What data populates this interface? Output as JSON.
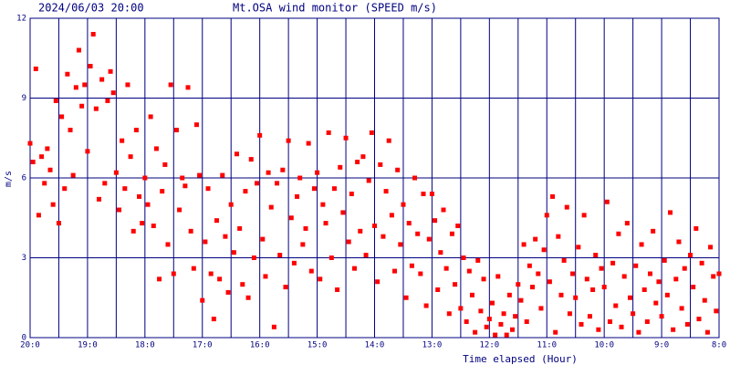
{
  "chart_data": {
    "type": "scatter",
    "title": "Mt.OSA wind monitor (SPEED m/s)",
    "subtitle": "2024/06/03 20:00",
    "x_label": "Time elapsed (Hour)",
    "y_label": "m/s",
    "xlim": [
      20,
      8
    ],
    "ylim": [
      0,
      12
    ],
    "xticks": [
      {
        "value": 20,
        "label": "20:0"
      },
      {
        "value": 19,
        "label": "19:0"
      },
      {
        "value": 18,
        "label": "18:0"
      },
      {
        "value": 17,
        "label": "17:0"
      },
      {
        "value": 16,
        "label": "16:0"
      },
      {
        "value": 15,
        "label": "15:0"
      },
      {
        "value": 14,
        "label": "14:0"
      },
      {
        "value": 13,
        "label": "13:0"
      },
      {
        "value": 12,
        "label": "12:0"
      },
      {
        "value": 11,
        "label": "11:0"
      },
      {
        "value": 10,
        "label": "10:0"
      },
      {
        "value": 9,
        "label": "9:0"
      },
      {
        "value": 8,
        "label": "8:0"
      }
    ],
    "x_minor_ticks": [
      19.5,
      18.5,
      17.5,
      16.5,
      15.5,
      14.5,
      13.5,
      12.5,
      11.5,
      10.5,
      9.5,
      8.5
    ],
    "yticks": [
      0,
      3,
      6,
      9,
      12
    ],
    "grid": true,
    "color": "#ff0000",
    "x": [
      20,
      19.95,
      19.9,
      19.85,
      19.8,
      19.75,
      19.7,
      19.65,
      19.6,
      19.55,
      19.5,
      19.45,
      19.4,
      19.35,
      19.3,
      19.25,
      19.2,
      19.15,
      19.1,
      19.05,
      19,
      18.95,
      18.9,
      18.85,
      18.8,
      18.75,
      18.7,
      18.65,
      18.6,
      18.55,
      18.5,
      18.45,
      18.4,
      18.35,
      18.3,
      18.25,
      18.2,
      18.15,
      18.1,
      18.05,
      18,
      17.95,
      17.9,
      17.85,
      17.8,
      17.75,
      17.7,
      17.65,
      17.6,
      17.55,
      17.5,
      17.45,
      17.4,
      17.35,
      17.3,
      17.25,
      17.2,
      17.15,
      17.1,
      17.05,
      17,
      16.95,
      16.9,
      16.85,
      16.8,
      16.75,
      16.7,
      16.65,
      16.6,
      16.55,
      16.5,
      16.45,
      16.4,
      16.35,
      16.3,
      16.25,
      16.2,
      16.15,
      16.1,
      16.05,
      16,
      15.95,
      15.9,
      15.85,
      15.8,
      15.75,
      15.7,
      15.65,
      15.6,
      15.55,
      15.5,
      15.45,
      15.4,
      15.35,
      15.3,
      15.25,
      15.2,
      15.15,
      15.1,
      15.05,
      15,
      14.95,
      14.9,
      14.85,
      14.8,
      14.75,
      14.7,
      14.65,
      14.6,
      14.55,
      14.5,
      14.45,
      14.4,
      14.35,
      14.3,
      14.25,
      14.2,
      14.15,
      14.1,
      14.05,
      14,
      13.95,
      13.9,
      13.85,
      13.8,
      13.75,
      13.7,
      13.65,
      13.6,
      13.55,
      13.5,
      13.45,
      13.4,
      13.35,
      13.3,
      13.25,
      13.2,
      13.15,
      13.1,
      13.05,
      13,
      12.95,
      12.9,
      12.85,
      12.8,
      12.75,
      12.7,
      12.65,
      12.6,
      12.55,
      12.5,
      12.45,
      12.4,
      12.35,
      12.3,
      12.25,
      12.2,
      12.15,
      12.1,
      12.05,
      12,
      11.95,
      11.9,
      11.85,
      11.8,
      11.75,
      11.7,
      11.65,
      11.6,
      11.55,
      11.5,
      11.45,
      11.4,
      11.35,
      11.3,
      11.25,
      11.2,
      11.15,
      11.1,
      11.05,
      11,
      10.95,
      10.9,
      10.85,
      10.8,
      10.75,
      10.7,
      10.65,
      10.6,
      10.55,
      10.5,
      10.45,
      10.4,
      10.35,
      10.3,
      10.25,
      10.2,
      10.15,
      10.1,
      10.05,
      10,
      9.95,
      9.9,
      9.85,
      9.8,
      9.75,
      9.7,
      9.65,
      9.6,
      9.55,
      9.5,
      9.45,
      9.4,
      9.35,
      9.3,
      9.25,
      9.2,
      9.15,
      9.1,
      9.05,
      9,
      8.95,
      8.9,
      8.85,
      8.8,
      8.75,
      8.7,
      8.65,
      8.6,
      8.55,
      8.5,
      8.45,
      8.4,
      8.35,
      8.3,
      8.25,
      8.2,
      8.15,
      8.1,
      8.05,
      8
    ],
    "values": [
      7.3,
      6.6,
      10.1,
      4.6,
      6.8,
      5.8,
      7.1,
      6.3,
      5.0,
      8.9,
      4.3,
      8.3,
      5.6,
      9.9,
      7.8,
      6.1,
      9.4,
      10.8,
      8.7,
      9.5,
      7.0,
      10.2,
      11.4,
      8.6,
      5.2,
      9.7,
      5.8,
      8.9,
      10.0,
      9.2,
      6.2,
      4.8,
      7.4,
      5.6,
      9.5,
      6.8,
      4.0,
      7.8,
      5.3,
      4.3,
      6.0,
      5.0,
      8.3,
      4.2,
      7.1,
      2.2,
      5.5,
      6.5,
      3.5,
      9.5,
      2.4,
      7.8,
      4.8,
      6.0,
      5.7,
      9.4,
      4.0,
      2.6,
      8.0,
      6.1,
      1.4,
      3.6,
      5.6,
      2.4,
      0.7,
      4.4,
      2.2,
      6.1,
      3.8,
      1.7,
      5.0,
      3.2,
      6.9,
      4.1,
      2.0,
      5.5,
      1.5,
      6.7,
      3.0,
      5.8,
      7.6,
      3.7,
      2.3,
      6.2,
      4.9,
      0.4,
      5.8,
      3.1,
      6.3,
      1.9,
      7.4,
      4.5,
      2.8,
      5.3,
      6.0,
      3.5,
      4.1,
      7.3,
      2.5,
      5.6,
      6.2,
      2.2,
      5.0,
      4.3,
      7.7,
      3.0,
      5.6,
      1.8,
      6.4,
      4.7,
      7.5,
      3.6,
      5.4,
      2.6,
      6.6,
      4.0,
      6.8,
      3.1,
      5.9,
      7.7,
      4.2,
      2.1,
      6.5,
      3.8,
      5.5,
      7.4,
      4.6,
      2.5,
      6.3,
      3.5,
      5.0,
      1.5,
      4.3,
      2.7,
      6.0,
      3.9,
      2.4,
      5.4,
      1.2,
      3.7,
      5.4,
      4.4,
      1.8,
      3.2,
      4.8,
      2.6,
      0.9,
      3.9,
      2.0,
      4.2,
      1.1,
      3.0,
      0.6,
      2.5,
      1.6,
      0.2,
      2.9,
      1.0,
      2.2,
      0.4,
      0.7,
      1.3,
      0.1,
      2.3,
      0.5,
      0.9,
      0.1,
      1.6,
      0.3,
      0.8,
      2.0,
      1.4,
      3.5,
      0.6,
      2.7,
      1.9,
      3.7,
      2.4,
      1.1,
      3.3,
      4.6,
      2.1,
      5.3,
      0.2,
      3.8,
      1.6,
      2.9,
      4.9,
      0.9,
      2.4,
      1.5,
      3.4,
      0.5,
      4.6,
      2.2,
      0.8,
      1.8,
      3.1,
      0.3,
      2.6,
      1.9,
      5.1,
      0.6,
      2.8,
      1.2,
      3.9,
      0.4,
      2.3,
      4.3,
      1.5,
      0.9,
      2.7,
      0.2,
      3.5,
      1.8,
      0.6,
      2.4,
      4.0,
      1.3,
      2.1,
      0.8,
      2.9,
      1.6,
      4.7,
      0.3,
      2.2,
      3.6,
      1.1,
      2.6,
      0.5,
      3.1,
      1.9,
      4.1,
      0.7,
      2.8,
      1.4,
      0.2,
      3.4,
      2.3,
      1.0,
      2.4
    ]
  }
}
